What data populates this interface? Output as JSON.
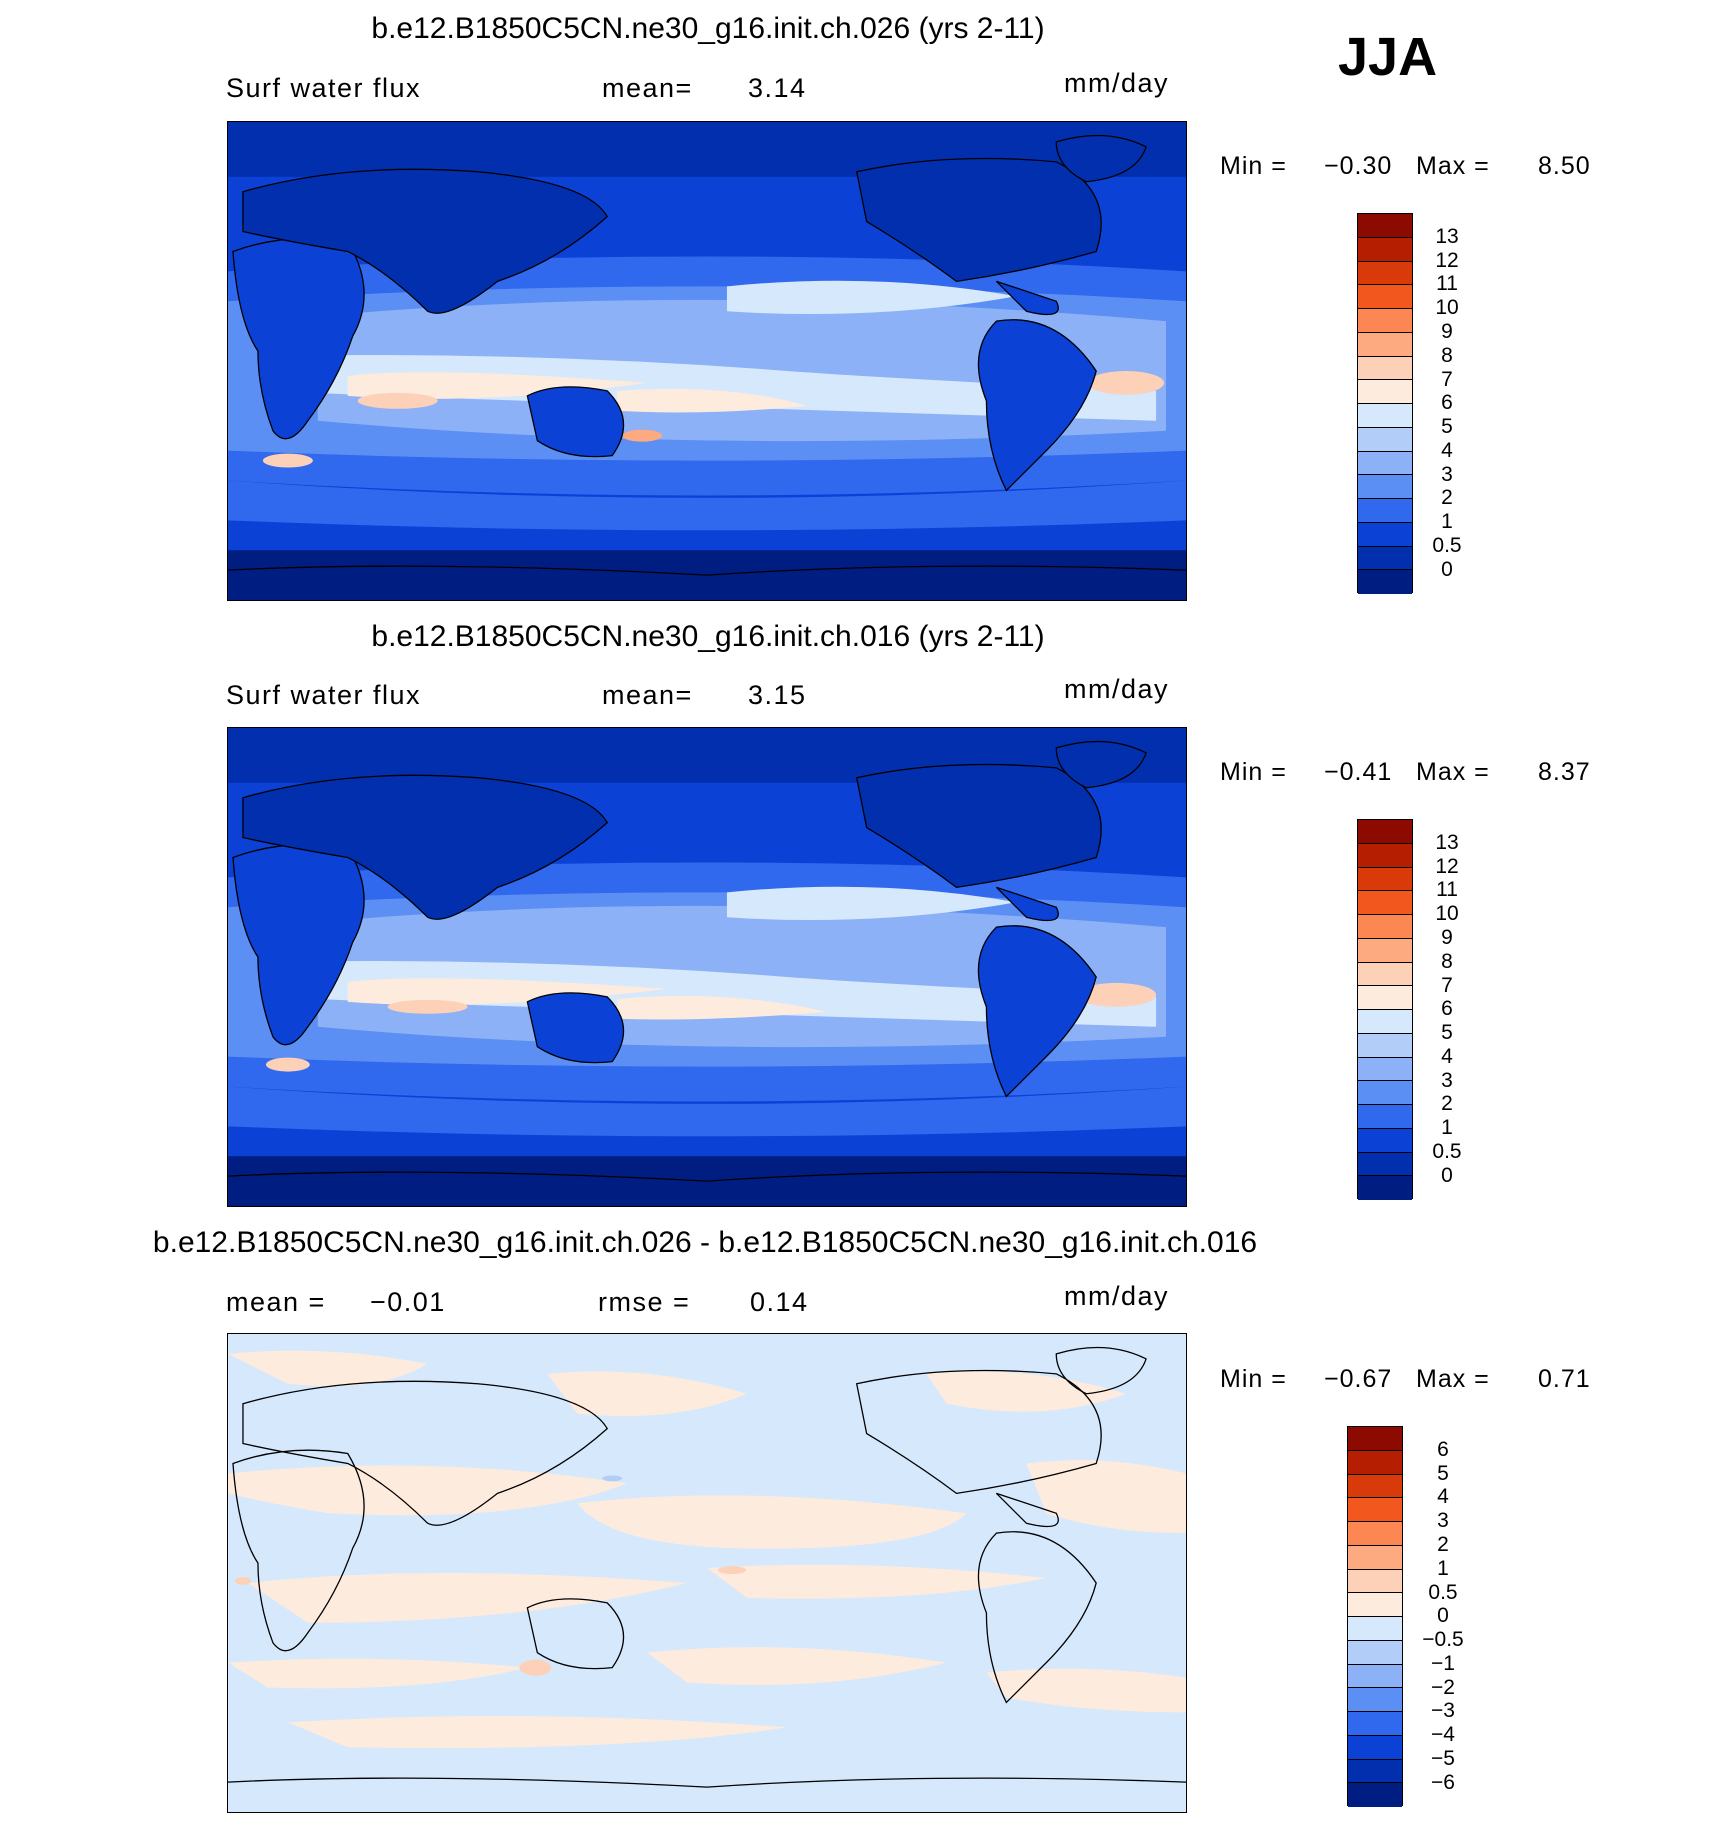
{
  "season": "JJA",
  "panels": [
    {
      "title": "b.e12.B1850C5CN.ne30_g16.init.ch.026 (yrs 2-11)",
      "left_label": "Surf  water  flux",
      "center_label": "mean=",
      "center_value": "3.14",
      "units": "mm/day",
      "min_label": "Min =",
      "min_value": "−0.30",
      "max_label": "Max =",
      "max_value": "8.50",
      "colorbar_labels": [
        "13",
        "12",
        "11",
        "10",
        "9",
        "8",
        "7",
        "6",
        "5",
        "4",
        "3",
        "2",
        "1",
        "0.5",
        "0"
      ],
      "colorbar_colors": [
        "#8c0a00",
        "#b51e00",
        "#d93a0a",
        "#f2581e",
        "#fc8752",
        "#fdaa80",
        "#fdd0b8",
        "#fdebde",
        "#d6e8fb",
        "#b2cef8",
        "#8cb1f7",
        "#5c8ff4",
        "#3068ee",
        "#0c41d6",
        "#022fad",
        "#001e82"
      ]
    },
    {
      "title": "b.e12.B1850C5CN.ne30_g16.init.ch.016 (yrs 2-11)",
      "left_label": "Surf  water  flux",
      "center_label": "mean=",
      "center_value": "3.15",
      "units": "mm/day",
      "min_label": "Min =",
      "min_value": "−0.41",
      "max_label": "Max =",
      "max_value": "8.37",
      "colorbar_labels": [
        "13",
        "12",
        "11",
        "10",
        "9",
        "8",
        "7",
        "6",
        "5",
        "4",
        "3",
        "2",
        "1",
        "0.5",
        "0"
      ],
      "colorbar_colors": [
        "#8c0a00",
        "#b51e00",
        "#d93a0a",
        "#f2581e",
        "#fc8752",
        "#fdaa80",
        "#fdd0b8",
        "#fdebde",
        "#d6e8fb",
        "#b2cef8",
        "#8cb1f7",
        "#5c8ff4",
        "#3068ee",
        "#0c41d6",
        "#022fad",
        "#001e82"
      ]
    },
    {
      "title": "b.e12.B1850C5CN.ne30_g16.init.ch.026 - b.e12.B1850C5CN.ne30_g16.init.ch.016",
      "left_label": "mean =",
      "left_value": "−0.01",
      "center_label": "rmse =",
      "center_value": "0.14",
      "units": "mm/day",
      "min_label": "Min =",
      "min_value": "−0.67",
      "max_label": "Max =",
      "max_value": "0.71",
      "colorbar_labels": [
        "6",
        "5",
        "4",
        "3",
        "2",
        "1",
        "0.5",
        "0",
        "−0.5",
        "−1",
        "−2",
        "−3",
        "−4",
        "−5",
        "−6"
      ],
      "colorbar_colors": [
        "#8c0a00",
        "#b51e00",
        "#d93a0a",
        "#f2581e",
        "#fc8752",
        "#fdaa80",
        "#fdd0b8",
        "#fdebde",
        "#d6e8fb",
        "#b2cef8",
        "#8cb1f7",
        "#5c8ff4",
        "#3068ee",
        "#0c41d6",
        "#022fad",
        "#001e82"
      ]
    }
  ]
}
